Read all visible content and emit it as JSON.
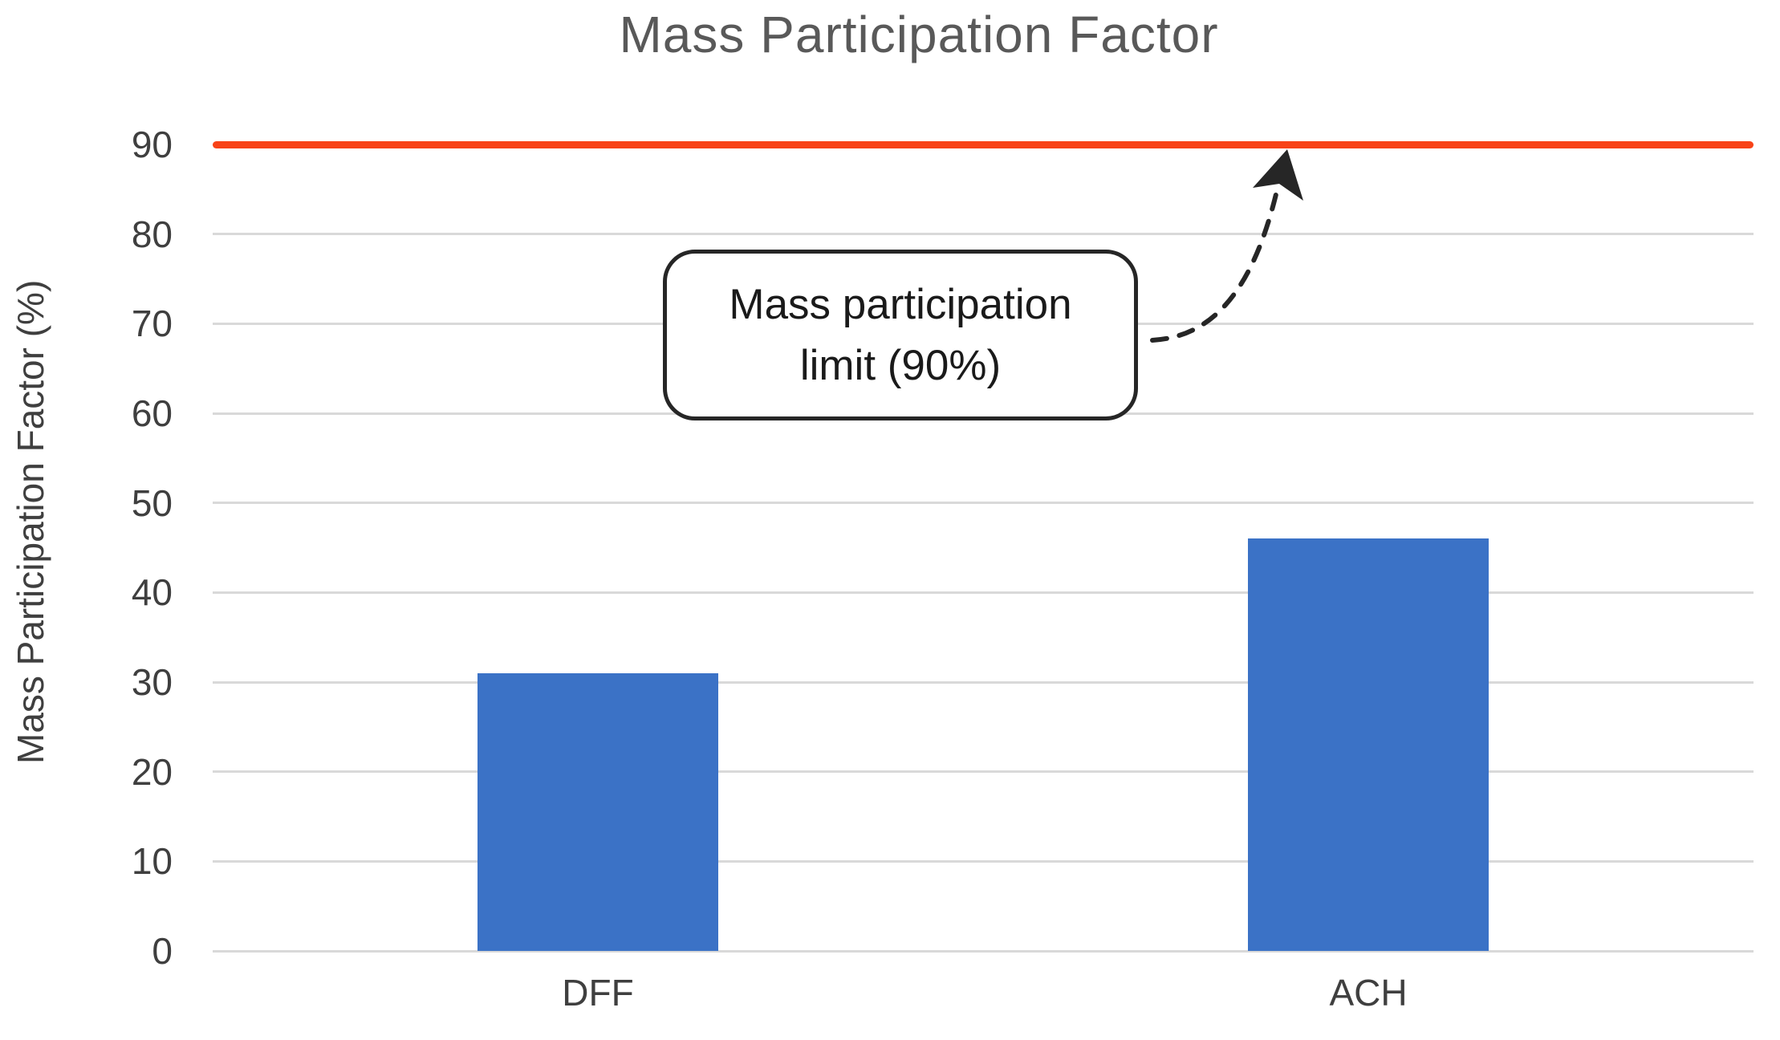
{
  "chart_data": {
    "type": "bar",
    "title": "Mass Participation Factor",
    "ylabel": "Mass Participation Factor (%)",
    "xlabel": "",
    "categories": [
      "DFF",
      "ACH"
    ],
    "values": [
      31,
      46
    ],
    "yticks": [
      0,
      10,
      20,
      30,
      40,
      50,
      60,
      70,
      80,
      90
    ],
    "ylim": [
      0,
      90
    ],
    "grid": "horizontal",
    "legend": "none",
    "limit_line": {
      "value": 90
    },
    "annotation": {
      "line1": "Mass participation",
      "line2": "limit (90%)",
      "full_text": "Mass participation limit (90%)",
      "target_value": 90
    },
    "colors": {
      "bar": "#3B72C6",
      "limit": "#F84318",
      "grid": "#D9D9D9",
      "axis_text": "#3F3F3F",
      "title_text": "#595959",
      "annotation_ink": "#262626"
    }
  }
}
